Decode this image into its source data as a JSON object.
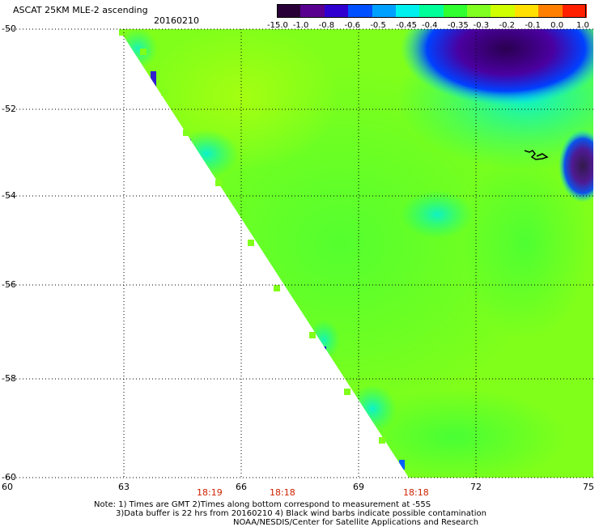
{
  "title": "ASCAT 25KM MLE-2 ascending",
  "date": "20160210",
  "colorbar": {
    "labels": [
      "-15.0",
      "-1.0",
      "-0.8",
      "-0.6",
      "-0.5",
      "-0.45",
      "-0.4",
      "-0.35",
      "-0.3",
      "-0.2",
      "-0.1",
      "0.0",
      "1.0"
    ],
    "colors": [
      "#2a0038",
      "#5a0090",
      "#3000d0",
      "#0050ff",
      "#00a0ff",
      "#00f0f0",
      "#00ff99",
      "#30ff30",
      "#80ff20",
      "#d0ff00",
      "#ffe000",
      "#ff8000",
      "#ff2000"
    ]
  },
  "latitudes": [
    "-50",
    "-52",
    "-54",
    "-56",
    "-58",
    "-60"
  ],
  "longitudes": [
    "60",
    "63",
    "66",
    "69",
    "72",
    "75"
  ],
  "times": [
    "18:19",
    "18:18",
    "18:18"
  ],
  "notes": {
    "line1": "Note: 1) Times are GMT 2)Times along bottom correspond to measurement at -55S",
    "line2": "3)Data buffer is 22 hrs from 20160210 4) Black wind barbs indicate possible contamination",
    "line3": "NOAA/NESDIS/Center for Satellite Applications and Research"
  }
}
